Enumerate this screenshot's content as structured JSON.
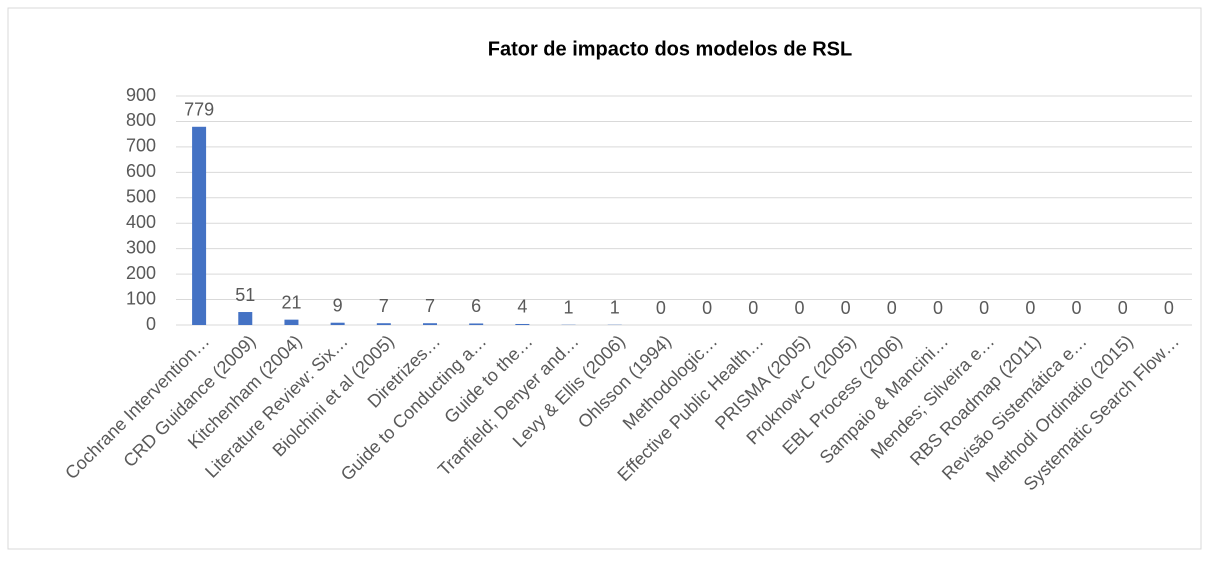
{
  "chart_data": {
    "type": "bar",
    "title": "Fator de impacto dos modelos de RSL",
    "categories": [
      "Cochrane Intervention…",
      "CRD Guidance (2009)",
      "Kitchenham (2004)",
      "Literature Review: Six…",
      "Biolchini et al (2005)",
      "Diretrizes…",
      "Guide to Conducting a…",
      "Guide to the…",
      "Tranfield; Denyer and…",
      "Levy & Ellis (2006)",
      "Ohlsson (1994)",
      "Methodologic…",
      "Effective Public Health…",
      "PRISMA (2005)",
      "Proknow-C (2005)",
      "EBL Process (2006)",
      "Sampaio & Mancini…",
      "Mendes; Silveira e…",
      "RBS Roadmap (2011)",
      "Revisão Sistemática e…",
      "Methodi Ordinatio (2015)",
      "Systematic Search Flow…"
    ],
    "values": [
      779,
      51,
      21,
      9,
      7,
      7,
      6,
      4,
      1,
      1,
      0,
      0,
      0,
      0,
      0,
      0,
      0,
      0,
      0,
      0,
      0,
      0
    ],
    "color": "#4472c4",
    "ylim": [
      0,
      900
    ],
    "yticks": [
      0,
      100,
      200,
      300,
      400,
      500,
      600,
      700,
      800,
      900
    ],
    "grid": true
  }
}
